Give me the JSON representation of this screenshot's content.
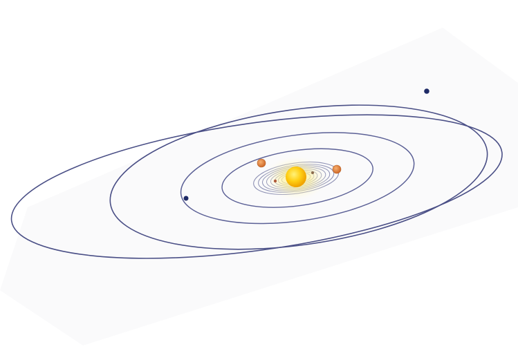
{
  "diagram": {
    "subject": "solar-system-orbits",
    "colors": {
      "background": "#ffffff",
      "orbit_outer": "#4a4f86",
      "orbit_inner": "#5a5f95",
      "orbit_faint": "#8d90b3",
      "sun_core": "#ffd21a",
      "sun_glow": "#fff3a0",
      "planet_dark": "#1e2a66",
      "planet_orange": "#e07a3a",
      "planet_tan": "#d98c4a"
    },
    "bodies": [
      {
        "id": "sun",
        "icon": "sun-icon"
      },
      {
        "id": "planet-orange-left",
        "icon": "planet-icon"
      },
      {
        "id": "planet-orange-right",
        "icon": "planet-icon"
      },
      {
        "id": "planet-dark-left",
        "icon": "planet-icon"
      },
      {
        "id": "planet-dark-right",
        "icon": "planet-icon"
      }
    ],
    "orbit_count_major": 4,
    "orbit_count_inner_rings": 8
  }
}
